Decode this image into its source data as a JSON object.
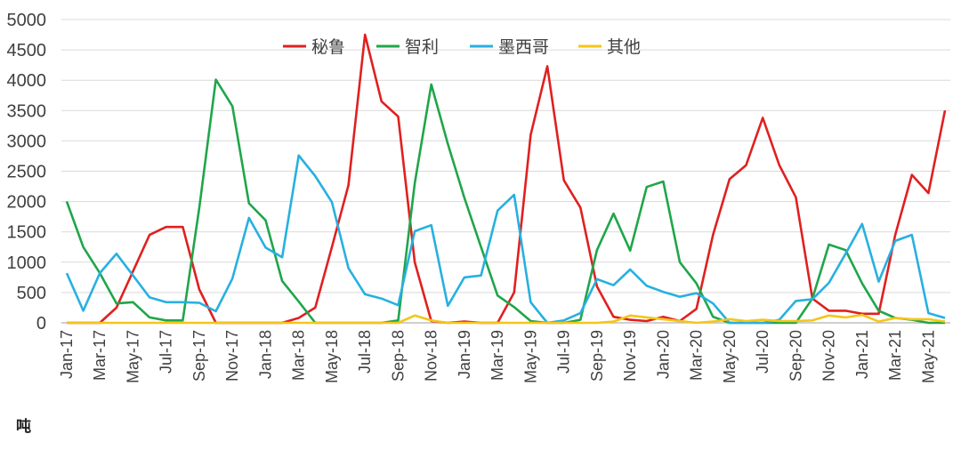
{
  "unit_label": "吨",
  "chart_data": {
    "type": "line",
    "title": "",
    "xlabel": "",
    "ylabel": "",
    "ylim": [
      0,
      5000
    ],
    "yticks": [
      0,
      500,
      1000,
      1500,
      2000,
      2500,
      3000,
      3500,
      4000,
      4500,
      5000
    ],
    "grid": true,
    "legend_position": "top-center",
    "x": [
      "Jan-17",
      "Feb-17",
      "Mar-17",
      "Apr-17",
      "May-17",
      "Jun-17",
      "Jul-17",
      "Aug-17",
      "Sep-17",
      "Oct-17",
      "Nov-17",
      "Dec-17",
      "Jan-18",
      "Feb-18",
      "Mar-18",
      "Apr-18",
      "May-18",
      "Jun-18",
      "Jul-18",
      "Aug-18",
      "Sep-18",
      "Oct-18",
      "Nov-18",
      "Dec-18",
      "Jan-19",
      "Feb-19",
      "Mar-19",
      "Apr-19",
      "May-19",
      "Jun-19",
      "Jul-19",
      "Aug-19",
      "Sep-19",
      "Oct-19",
      "Nov-19",
      "Dec-19",
      "Jan-20",
      "Feb-20",
      "Mar-20",
      "Apr-20",
      "May-20",
      "Jun-20",
      "Jul-20",
      "Aug-20",
      "Sep-20",
      "Oct-20",
      "Nov-20",
      "Dec-20",
      "Jan-21",
      "Feb-21",
      "Mar-21",
      "Apr-21",
      "May-21",
      "Jun-21"
    ],
    "xtick_labels": [
      "Jan-17",
      "Mar-17",
      "May-17",
      "Jul-17",
      "Sep-17",
      "Nov-17",
      "Jan-18",
      "Mar-18",
      "May-18",
      "Jul-18",
      "Sep-18",
      "Nov-18",
      "Jan-19",
      "Mar-19",
      "May-19",
      "Jul-19",
      "Sep-19",
      "Nov-19",
      "Jan-20",
      "Mar-20",
      "May-20",
      "Jul-20",
      "Sep-20",
      "Nov-20",
      "Jan-21",
      "Mar-21",
      "May-21"
    ],
    "series": [
      {
        "name": "秘鲁",
        "color": "#e02020",
        "values": [
          0,
          0,
          0,
          250,
          850,
          1450,
          1580,
          1580,
          550,
          0,
          0,
          0,
          0,
          0,
          80,
          250,
          1250,
          2270,
          4750,
          3650,
          3400,
          1000,
          30,
          0,
          20,
          0,
          0,
          500,
          3100,
          4230,
          2350,
          1900,
          600,
          100,
          50,
          30,
          100,
          30,
          230,
          1450,
          2370,
          2600,
          3380,
          2600,
          2070,
          400,
          200,
          200,
          150,
          150,
          1450,
          2440,
          2140,
          3500
        ]
      },
      {
        "name": "智利",
        "color": "#1fa64a",
        "values": [
          2000,
          1250,
          820,
          320,
          340,
          90,
          40,
          40,
          1900,
          4010,
          3570,
          1970,
          1690,
          690,
          350,
          0,
          0,
          0,
          0,
          0,
          40,
          2300,
          3930,
          2950,
          2060,
          1250,
          450,
          260,
          30,
          0,
          0,
          50,
          1200,
          1800,
          1190,
          2240,
          2330,
          1000,
          650,
          100,
          0,
          0,
          0,
          0,
          0,
          400,
          1290,
          1200,
          650,
          200,
          80,
          50,
          0,
          0
        ]
      },
      {
        "name": "墨西哥",
        "color": "#27b0e0",
        "values": [
          820,
          200,
          820,
          1140,
          780,
          420,
          340,
          340,
          330,
          190,
          730,
          1730,
          1240,
          1080,
          2760,
          2420,
          1990,
          900,
          470,
          400,
          290,
          1510,
          1610,
          280,
          750,
          780,
          1850,
          2110,
          340,
          0,
          40,
          160,
          720,
          620,
          880,
          610,
          510,
          430,
          490,
          320,
          0,
          0,
          0,
          50,
          360,
          390,
          660,
          1140,
          1630,
          680,
          1350,
          1450,
          160,
          80
        ]
      },
      {
        "name": "其他",
        "color": "#f5c518",
        "values": [
          0,
          0,
          0,
          0,
          0,
          0,
          0,
          0,
          0,
          0,
          0,
          0,
          0,
          0,
          0,
          0,
          0,
          0,
          0,
          0,
          0,
          120,
          40,
          0,
          0,
          0,
          0,
          0,
          0,
          0,
          0,
          0,
          0,
          20,
          120,
          90,
          60,
          30,
          0,
          20,
          60,
          30,
          50,
          30,
          30,
          40,
          120,
          90,
          130,
          20,
          80,
          60,
          60,
          20
        ]
      }
    ]
  }
}
